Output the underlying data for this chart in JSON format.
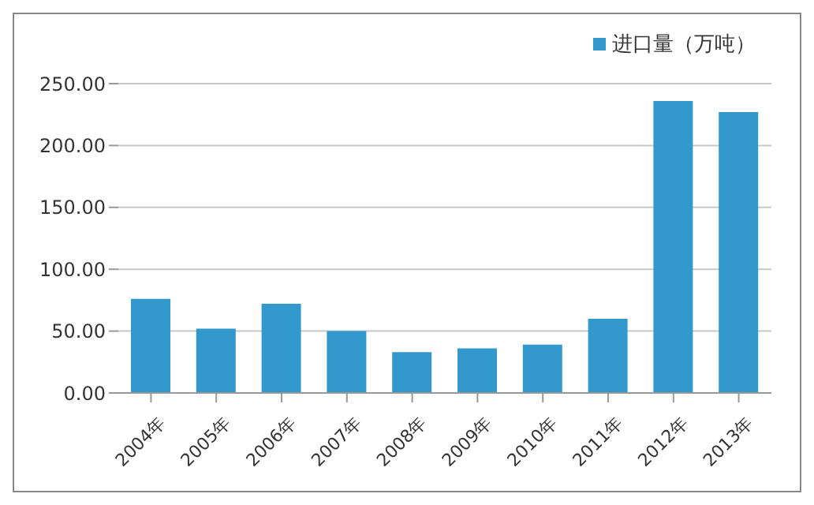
{
  "chart_data": {
    "type": "bar",
    "categories": [
      "2004年",
      "2005年",
      "2006年",
      "2007年",
      "2008年",
      "2009年",
      "2010年",
      "2011年",
      "2012年",
      "2013年"
    ],
    "series": [
      {
        "name": "进口量（万吨）",
        "color": "#3399cc",
        "values": [
          76,
          52,
          72,
          50,
          33,
          36,
          39,
          60,
          236,
          227
        ]
      }
    ],
    "ylim": [
      0,
      250
    ],
    "yticks": [
      {
        "value": 0,
        "label": "0.00"
      },
      {
        "value": 50,
        "label": "50.00"
      },
      {
        "value": 100,
        "label": "100.00"
      },
      {
        "value": 150,
        "label": "150.00"
      },
      {
        "value": 200,
        "label": "200.00"
      },
      {
        "value": 250,
        "label": "250.00"
      }
    ],
    "grid": "y",
    "legend": "top right"
  }
}
